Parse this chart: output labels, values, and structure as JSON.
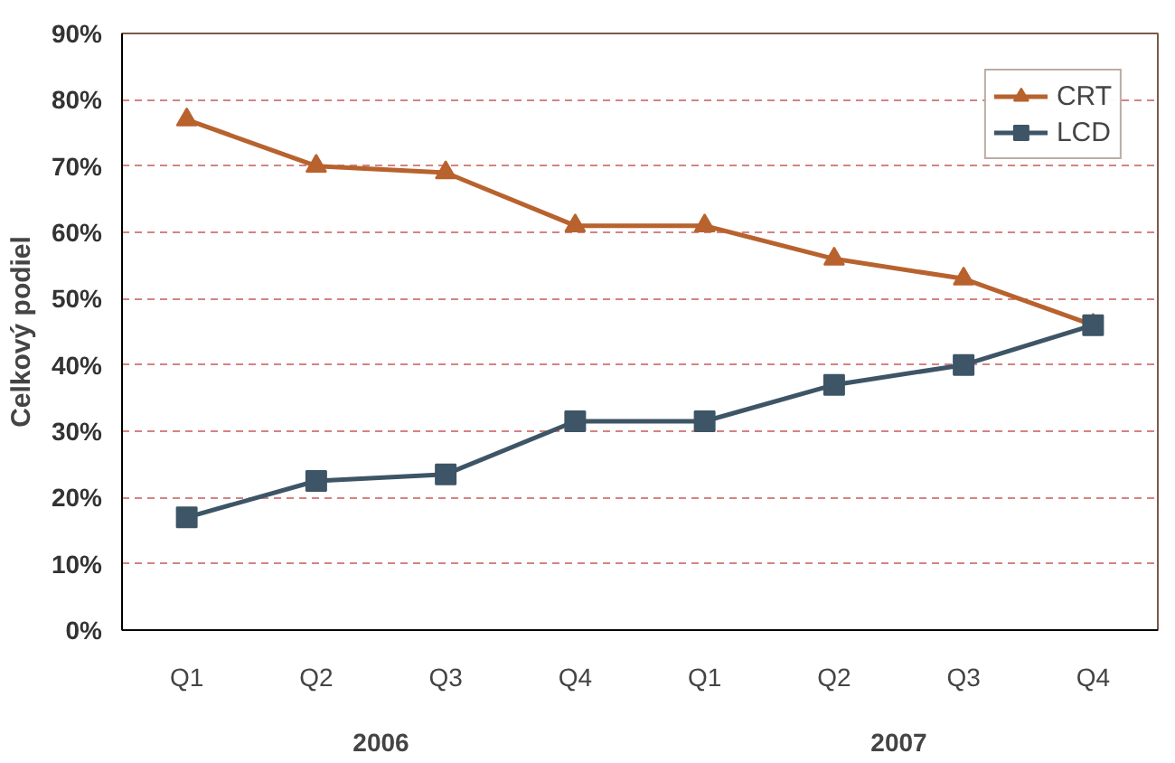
{
  "chart_data": {
    "type": "line",
    "ylabel": "Celkový podiel",
    "categories": [
      "Q1",
      "Q2",
      "Q3",
      "Q4",
      "Q1",
      "Q2",
      "Q3",
      "Q4"
    ],
    "series": [
      {
        "name": "CRT",
        "color": "#b8622e",
        "marker": "triangle",
        "values": [
          77,
          70,
          69,
          61,
          61,
          56,
          53,
          46
        ]
      },
      {
        "name": "LCD",
        "color": "#3d5566",
        "marker": "square",
        "values": [
          17,
          22.5,
          23.5,
          31.5,
          31.5,
          37,
          40,
          46
        ]
      }
    ],
    "annotations": [
      "2006",
      "2007"
    ],
    "ylim": [
      0,
      90
    ],
    "yticks": [
      {
        "value": 0,
        "label": "0%"
      },
      {
        "value": 10,
        "label": "10%"
      },
      {
        "value": 20,
        "label": "20%"
      },
      {
        "value": 30,
        "label": "30%"
      },
      {
        "value": 40,
        "label": "40%"
      },
      {
        "value": 50,
        "label": "50%"
      },
      {
        "value": 60,
        "label": "60%"
      },
      {
        "value": 70,
        "label": "70%"
      },
      {
        "value": 80,
        "label": "80%"
      },
      {
        "value": 90,
        "label": "90%"
      }
    ],
    "grid": "y",
    "legend": "top right",
    "line_style": "solid"
  }
}
